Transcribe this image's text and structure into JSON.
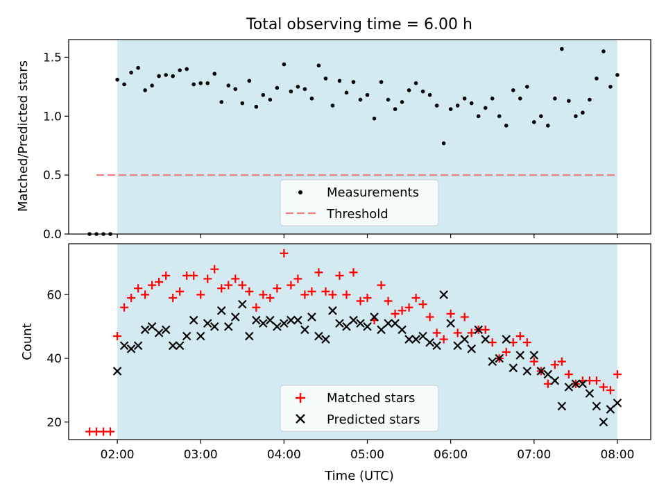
{
  "title": "Total observing time = 6.00 h",
  "chart_data": [
    {
      "type": "scatter",
      "ylabel": "Matched/Predicted stars",
      "ylim": [
        0,
        1.65
      ],
      "yticks": [
        "0.0",
        "0.5",
        "1.0",
        "1.5"
      ],
      "xlim": [
        85,
        504
      ],
      "observing_window": [
        120,
        480
      ],
      "series": [
        {
          "name": "Measurements",
          "marker": "dot",
          "color": "#000000",
          "points": [
            [
              100,
              0
            ],
            [
              105,
              0
            ],
            [
              110,
              0
            ],
            [
              115,
              0
            ],
            [
              120,
              1.31
            ],
            [
              125,
              1.27
            ],
            [
              130,
              1.37
            ],
            [
              135,
              1.41
            ],
            [
              140,
              1.22
            ],
            [
              145,
              1.26
            ],
            [
              150,
              1.34
            ],
            [
              155,
              1.35
            ],
            [
              160,
              1.34
            ],
            [
              165,
              1.39
            ],
            [
              170,
              1.4
            ],
            [
              175,
              1.27
            ],
            [
              180,
              1.28
            ],
            [
              185,
              1.28
            ],
            [
              190,
              1.36
            ],
            [
              195,
              1.12
            ],
            [
              200,
              1.26
            ],
            [
              205,
              1.23
            ],
            [
              210,
              1.11
            ],
            [
              215,
              1.3
            ],
            [
              220,
              1.08
            ],
            [
              225,
              1.18
            ],
            [
              230,
              1.14
            ],
            [
              235,
              1.24
            ],
            [
              240,
              1.44
            ],
            [
              245,
              1.21
            ],
            [
              250,
              1.25
            ],
            [
              255,
              1.23
            ],
            [
              260,
              1.15
            ],
            [
              265,
              1.43
            ],
            [
              270,
              1.32
            ],
            [
              275,
              1.09
            ],
            [
              280,
              1.3
            ],
            [
              285,
              1.2
            ],
            [
              290,
              1.29
            ],
            [
              295,
              1.14
            ],
            [
              300,
              1.18
            ],
            [
              305,
              0.98
            ],
            [
              310,
              1.29
            ],
            [
              315,
              1.14
            ],
            [
              320,
              1.06
            ],
            [
              325,
              1.12
            ],
            [
              330,
              1.22
            ],
            [
              335,
              1.28
            ],
            [
              340,
              1.21
            ],
            [
              345,
              1.18
            ],
            [
              350,
              1.09
            ],
            [
              355,
              0.77
            ],
            [
              360,
              1.06
            ],
            [
              365,
              1.09
            ],
            [
              370,
              1.15
            ],
            [
              375,
              1.11
            ],
            [
              380,
              1.0
            ],
            [
              385,
              1.07
            ],
            [
              390,
              1.15
            ],
            [
              395,
              1.0
            ],
            [
              400,
              0.92
            ],
            [
              405,
              1.22
            ],
            [
              410,
              1.15
            ],
            [
              415,
              1.25
            ],
            [
              420,
              0.95
            ],
            [
              425,
              1.0
            ],
            [
              430,
              0.92
            ],
            [
              435,
              1.15
            ],
            [
              440,
              1.57
            ],
            [
              445,
              1.13
            ],
            [
              450,
              1.0
            ],
            [
              455,
              1.03
            ],
            [
              460,
              1.14
            ],
            [
              465,
              1.32
            ],
            [
              470,
              1.55
            ],
            [
              475,
              1.25
            ],
            [
              480,
              1.35
            ]
          ]
        },
        {
          "name": "Threshold",
          "style": "dashed",
          "color": "#f08080",
          "x": [
            105,
            478
          ],
          "y": [
            0.5,
            0.5
          ]
        }
      ],
      "legend": "lower-center"
    },
    {
      "type": "scatter",
      "ylabel": "Count",
      "xlabel": "Time (UTC)",
      "ylim": [
        14.5,
        76
      ],
      "yticks": [
        "20",
        "40",
        "60"
      ],
      "xlim": [
        85,
        504
      ],
      "xticks": [
        {
          "t": 120,
          "label": "02:00"
        },
        {
          "t": 180,
          "label": "03:00"
        },
        {
          "t": 240,
          "label": "04:00"
        },
        {
          "t": 300,
          "label": "05:00"
        },
        {
          "t": 360,
          "label": "06:00"
        },
        {
          "t": 420,
          "label": "07:00"
        },
        {
          "t": 480,
          "label": "08:00"
        }
      ],
      "observing_window": [
        120,
        480
      ],
      "series": [
        {
          "name": "Matched stars",
          "marker": "plus",
          "color": "#ff0000",
          "points": [
            [
              100,
              17
            ],
            [
              105,
              17
            ],
            [
              110,
              17
            ],
            [
              115,
              17
            ],
            [
              120,
              47
            ],
            [
              125,
              56
            ],
            [
              130,
              59
            ],
            [
              135,
              62
            ],
            [
              140,
              60
            ],
            [
              145,
              63
            ],
            [
              150,
              64
            ],
            [
              155,
              66
            ],
            [
              160,
              59
            ],
            [
              165,
              61
            ],
            [
              170,
              66
            ],
            [
              175,
              66
            ],
            [
              180,
              60
            ],
            [
              185,
              65
            ],
            [
              190,
              68
            ],
            [
              195,
              62
            ],
            [
              200,
              63
            ],
            [
              205,
              65
            ],
            [
              210,
              63
            ],
            [
              215,
              61
            ],
            [
              220,
              56
            ],
            [
              225,
              60
            ],
            [
              230,
              59
            ],
            [
              235,
              62
            ],
            [
              240,
              73
            ],
            [
              245,
              63
            ],
            [
              250,
              65
            ],
            [
              255,
              60
            ],
            [
              260,
              61
            ],
            [
              265,
              67
            ],
            [
              270,
              61
            ],
            [
              275,
              60
            ],
            [
              280,
              66
            ],
            [
              285,
              60
            ],
            [
              290,
              67
            ],
            [
              295,
              58
            ],
            [
              300,
              59
            ],
            [
              305,
              52
            ],
            [
              310,
              63
            ],
            [
              315,
              58
            ],
            [
              320,
              54
            ],
            [
              325,
              55
            ],
            [
              330,
              56
            ],
            [
              335,
              59
            ],
            [
              340,
              57
            ],
            [
              345,
              53
            ],
            [
              350,
              48
            ],
            [
              355,
              46
            ],
            [
              360,
              54
            ],
            [
              365,
              48
            ],
            [
              370,
              53
            ],
            [
              375,
              48
            ],
            [
              380,
              49
            ],
            [
              385,
              49
            ],
            [
              390,
              45
            ],
            [
              395,
              40
            ],
            [
              400,
              42
            ],
            [
              405,
              45
            ],
            [
              410,
              47
            ],
            [
              415,
              45
            ],
            [
              420,
              39
            ],
            [
              425,
              36
            ],
            [
              430,
              32
            ],
            [
              435,
              38
            ],
            [
              440,
              39
            ],
            [
              445,
              35
            ],
            [
              450,
              32
            ],
            [
              455,
              33
            ],
            [
              460,
              33
            ],
            [
              465,
              33
            ],
            [
              470,
              31
            ],
            [
              475,
              30
            ],
            [
              480,
              35
            ]
          ]
        },
        {
          "name": "Predicted stars",
          "marker": "x",
          "color": "#000000",
          "points": [
            [
              120,
              36
            ],
            [
              125,
              44
            ],
            [
              130,
              43
            ],
            [
              135,
              44
            ],
            [
              140,
              49
            ],
            [
              145,
              50
            ],
            [
              150,
              48
            ],
            [
              155,
              49
            ],
            [
              160,
              44
            ],
            [
              165,
              44
            ],
            [
              170,
              47
            ],
            [
              175,
              52
            ],
            [
              180,
              47
            ],
            [
              185,
              51
            ],
            [
              190,
              50
            ],
            [
              195,
              55
            ],
            [
              200,
              50
            ],
            [
              205,
              53
            ],
            [
              210,
              57
            ],
            [
              215,
              47
            ],
            [
              220,
              52
            ],
            [
              225,
              51
            ],
            [
              230,
              52
            ],
            [
              235,
              50
            ],
            [
              240,
              51
            ],
            [
              245,
              52
            ],
            [
              250,
              52
            ],
            [
              255,
              49
            ],
            [
              260,
              53
            ],
            [
              265,
              47
            ],
            [
              270,
              46
            ],
            [
              275,
              55
            ],
            [
              280,
              51
            ],
            [
              285,
              50
            ],
            [
              290,
              52
            ],
            [
              295,
              51
            ],
            [
              300,
              50
            ],
            [
              305,
              53
            ],
            [
              310,
              49
            ],
            [
              315,
              51
            ],
            [
              320,
              51
            ],
            [
              325,
              49
            ],
            [
              330,
              46
            ],
            [
              335,
              46
            ],
            [
              340,
              47
            ],
            [
              345,
              45
            ],
            [
              350,
              44
            ],
            [
              355,
              60
            ],
            [
              360,
              51
            ],
            [
              365,
              44
            ],
            [
              370,
              46
            ],
            [
              375,
              43
            ],
            [
              380,
              49
            ],
            [
              385,
              46
            ],
            [
              390,
              39
            ],
            [
              395,
              40
            ],
            [
              400,
              46
            ],
            [
              405,
              37
            ],
            [
              410,
              41
            ],
            [
              415,
              36
            ],
            [
              420,
              41
            ],
            [
              425,
              36
            ],
            [
              430,
              35
            ],
            [
              435,
              33
            ],
            [
              440,
              25
            ],
            [
              445,
              31
            ],
            [
              450,
              32
            ],
            [
              455,
              32
            ],
            [
              460,
              29
            ],
            [
              465,
              25
            ],
            [
              470,
              20
            ],
            [
              475,
              24
            ],
            [
              480,
              26
            ]
          ]
        }
      ],
      "legend": "lower-center"
    }
  ],
  "colors": {
    "observing_window": "#d3eaf0",
    "threshold": "#f08080",
    "matched": "#ff0000",
    "predicted": "#000000"
  }
}
